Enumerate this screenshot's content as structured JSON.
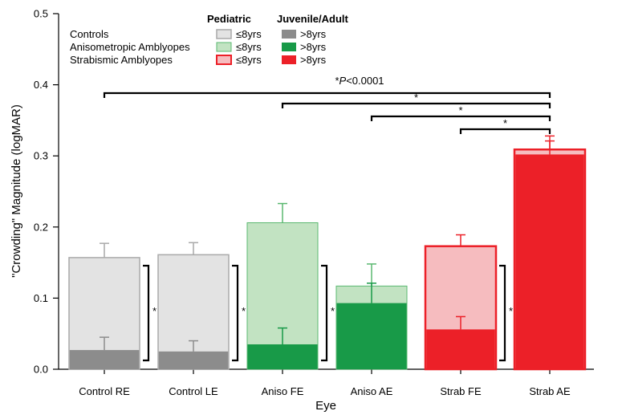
{
  "chart_data": {
    "type": "bar",
    "xlabel": "Eye",
    "ylabel": "\"Crowding\" Magnitude (logMAR)",
    "ylim": [
      0,
      0.5
    ],
    "yticks": [
      "0.0",
      "0.1",
      "0.2",
      "0.3",
      "0.4",
      "0.5"
    ],
    "categories": [
      "Control RE",
      "Control LE",
      "Aniso FE",
      "Aniso AE",
      "Strab FE",
      "Strab AE"
    ],
    "series": [
      {
        "name": "Pediatric (≤8yrs)",
        "values": [
          0.157,
          0.161,
          0.206,
          0.117,
          0.173,
          0.309
        ],
        "errors": [
          0.02,
          0.017,
          0.027,
          0.031,
          0.016,
          0.019
        ]
      },
      {
        "name": "Juvenile/Adult (>8yrs)",
        "values": [
          0.027,
          0.025,
          0.035,
          0.093,
          0.056,
          0.302
        ],
        "errors": [
          0.018,
          0.015,
          0.023,
          0.028,
          0.018,
          0.019
        ]
      }
    ],
    "colors": {
      "control_ped_fill": "#e3e3e3",
      "control_ped_stroke": "#a9a9a9",
      "control_adult": "#8c8c8c",
      "aniso_ped_fill": "#c2e3c2",
      "aniso_ped_stroke": "#5ab870",
      "aniso_adult": "#189a48",
      "strab_ped_fill": "#f6bcbf",
      "strab_ped_stroke": "#ec2028",
      "strab_adult": "#ec2028"
    },
    "legend": {
      "header_pediatric": "Pediatric",
      "header_adult": "Juvenile/Adult",
      "rows": [
        {
          "label": "Controls",
          "ped": "≤8yrs",
          "adult": ">8yrs"
        },
        {
          "label": "Anisometropic Amblyopes",
          "ped": "≤8yrs",
          "adult": ">8yrs"
        },
        {
          "label": "Strabismic Amblyopes",
          "ped": "≤8yrs",
          "adult": ">8yrs"
        }
      ]
    },
    "significance": {
      "top_label_prefix": "*",
      "top_label_p": "P",
      "top_label_rest": "<0.0001",
      "bracket_star": "*",
      "between_groups": [
        {
          "from": "Control RE",
          "to": "Strab AE",
          "label": "*P<0.0001"
        },
        {
          "from": "Aniso FE",
          "to": "Strab AE",
          "label": "*"
        },
        {
          "from": "Aniso AE",
          "to": "Strab AE",
          "label": "*"
        },
        {
          "from": "Strab FE",
          "to": "Strab AE",
          "label": "*"
        }
      ],
      "within_bar": [
        "Control RE",
        "Control LE",
        "Aniso FE",
        "Strab FE"
      ]
    }
  }
}
